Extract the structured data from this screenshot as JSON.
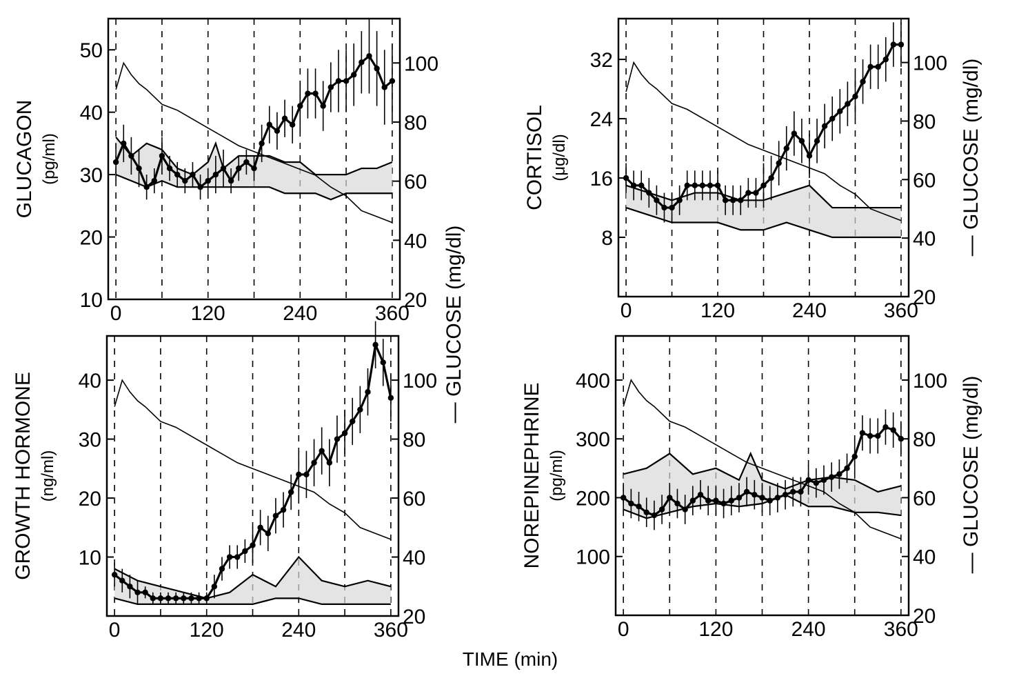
{
  "x_axis_title": "TIME (min)",
  "glucose_axis_label": "— GLUCOSE (mg/dl)",
  "chart_data": [
    {
      "type": "line",
      "panel": "top-left",
      "ylabel": "GLUCAGON",
      "ylabel_unit": "(pg/ml)",
      "ylim": [
        10,
        55
      ],
      "yticks": [
        10,
        20,
        30,
        40,
        50
      ],
      "xlim": [
        -10,
        370
      ],
      "xticks": [
        0,
        120,
        240,
        360
      ],
      "vlines": [
        0,
        60,
        120,
        180,
        240,
        300,
        360
      ],
      "right_axis": {
        "label": "— GLUCOSE (mg/dl)",
        "ylim": [
          20,
          115
        ],
        "yticks": [
          20,
          40,
          60,
          80,
          100
        ]
      },
      "series": [
        {
          "axis": "left",
          "style": "mean-sem",
          "x": [
            0,
            10,
            20,
            30,
            40,
            50,
            60,
            70,
            80,
            90,
            100,
            110,
            120,
            130,
            140,
            150,
            160,
            170,
            180,
            190,
            200,
            210,
            220,
            230,
            240,
            250,
            260,
            270,
            280,
            290,
            300,
            310,
            320,
            330,
            340,
            350,
            360
          ],
          "y": [
            32,
            35,
            33,
            31,
            28,
            29,
            33,
            31,
            30,
            29,
            30,
            28,
            29,
            30,
            31,
            29,
            31,
            32,
            31,
            35,
            38,
            37,
            39,
            38,
            41,
            43,
            43,
            41,
            44,
            45,
            45,
            46,
            48,
            49,
            47,
            44,
            45
          ],
          "err": [
            3,
            3,
            3,
            3,
            2,
            2,
            3,
            2,
            2,
            2,
            2,
            2,
            2,
            3,
            3,
            2,
            2,
            2,
            2,
            3,
            3,
            3,
            3,
            3,
            4,
            4,
            4,
            4,
            4,
            5,
            5,
            5,
            5,
            6,
            6,
            6,
            6
          ]
        },
        {
          "axis": "left",
          "style": "sem-band-upper",
          "x": [
            0,
            20,
            40,
            60,
            80,
            100,
            120,
            130,
            140,
            160,
            180,
            200,
            220,
            240,
            260,
            280,
            300,
            320,
            340,
            360
          ],
          "y": [
            36,
            33,
            35,
            34,
            31,
            30,
            32,
            35,
            31,
            33,
            33,
            33,
            32,
            32,
            30,
            30,
            30,
            31,
            31,
            32
          ]
        },
        {
          "axis": "left",
          "style": "sem-band-lower",
          "x": [
            0,
            20,
            40,
            60,
            80,
            100,
            120,
            140,
            160,
            180,
            200,
            220,
            240,
            260,
            280,
            300,
            320,
            340,
            360
          ],
          "y": [
            30,
            29,
            28,
            29,
            28,
            28,
            28,
            28,
            28,
            28,
            28,
            27,
            27,
            27,
            26,
            27,
            27,
            27,
            27
          ]
        },
        {
          "axis": "right",
          "style": "glucose",
          "x": [
            0,
            10,
            20,
            30,
            40,
            60,
            80,
            100,
            120,
            140,
            160,
            180,
            200,
            220,
            240,
            260,
            280,
            300,
            320,
            340,
            360
          ],
          "y": [
            91,
            100,
            96,
            93,
            91,
            86,
            84,
            81,
            78,
            75,
            72,
            70,
            68,
            66,
            64,
            62,
            58,
            55,
            50,
            48,
            46
          ]
        }
      ]
    },
    {
      "type": "line",
      "panel": "top-right",
      "ylabel": "CORTISOL",
      "ylabel_unit": "(μg/dl)",
      "ylim": [
        0,
        37.5
      ],
      "yticks": [
        8,
        16,
        24,
        32
      ],
      "xlim": [
        -10,
        370
      ],
      "xticks": [
        0,
        120,
        240,
        360
      ],
      "vlines": [
        0,
        60,
        120,
        180,
        240,
        300,
        360
      ],
      "right_axis": {
        "label": "— GLUCOSE (mg/dl)",
        "ylim": [
          20,
          115
        ],
        "yticks": [
          20,
          40,
          60,
          80,
          100
        ]
      },
      "series": [
        {
          "axis": "left",
          "style": "mean-sem",
          "x": [
            0,
            10,
            20,
            30,
            40,
            50,
            60,
            70,
            80,
            90,
            100,
            110,
            120,
            130,
            140,
            150,
            160,
            170,
            180,
            190,
            200,
            210,
            220,
            230,
            240,
            250,
            260,
            270,
            280,
            290,
            300,
            310,
            320,
            330,
            340,
            350,
            360
          ],
          "y": [
            16,
            15,
            15,
            14,
            13,
            12,
            12,
            13,
            15,
            15,
            15,
            15,
            15,
            13,
            13,
            13,
            14,
            14,
            15,
            16,
            18,
            20,
            22,
            21,
            19,
            21,
            23,
            24,
            25,
            26,
            27,
            29,
            31,
            31,
            32,
            34,
            34
          ],
          "err": [
            2,
            2,
            2,
            2,
            2,
            2,
            2,
            2,
            2,
            2,
            2,
            2,
            2,
            2,
            2,
            2,
            2,
            2,
            3,
            3,
            3,
            3,
            3,
            3,
            3,
            3,
            3,
            3,
            3,
            3,
            3,
            3,
            3,
            3,
            3,
            3,
            3
          ]
        },
        {
          "axis": "left",
          "style": "sem-band-upper",
          "x": [
            0,
            30,
            60,
            90,
            120,
            150,
            180,
            210,
            240,
            270,
            300,
            330,
            360
          ],
          "y": [
            15,
            14,
            13,
            14,
            14,
            13,
            13,
            14,
            15,
            12,
            12,
            12,
            12
          ]
        },
        {
          "axis": "left",
          "style": "sem-band-lower",
          "x": [
            0,
            30,
            60,
            90,
            120,
            150,
            180,
            210,
            240,
            270,
            300,
            330,
            360
          ],
          "y": [
            12,
            11,
            10,
            10,
            10,
            9,
            9,
            10,
            9,
            8,
            8,
            8,
            8
          ]
        },
        {
          "axis": "right",
          "style": "glucose",
          "x": [
            0,
            10,
            20,
            30,
            40,
            60,
            80,
            100,
            120,
            140,
            160,
            180,
            200,
            220,
            240,
            260,
            280,
            300,
            320,
            340,
            360
          ],
          "y": [
            90,
            100,
            96,
            93,
            91,
            86,
            84,
            81,
            78,
            75,
            72,
            70,
            68,
            66,
            64,
            62,
            58,
            55,
            50,
            48,
            46
          ]
        }
      ]
    },
    {
      "type": "line",
      "panel": "bottom-left",
      "ylabel": "GROWTH HORMONE",
      "ylabel_unit": "(ng/ml)",
      "ylim": [
        0,
        47.5
      ],
      "yticks": [
        10,
        20,
        30,
        40
      ],
      "xlim": [
        -10,
        370
      ],
      "xticks": [
        0,
        120,
        240,
        360
      ],
      "vlines": [
        0,
        60,
        120,
        180,
        240,
        300,
        360
      ],
      "right_axis": {
        "label": "— GLUCOSE (mg/dl)",
        "ylim": [
          20,
          115
        ],
        "yticks": [
          20,
          40,
          60,
          80,
          100
        ]
      },
      "series": [
        {
          "axis": "left",
          "style": "mean-sem",
          "x": [
            0,
            10,
            20,
            30,
            40,
            50,
            60,
            70,
            80,
            90,
            100,
            110,
            120,
            130,
            140,
            150,
            160,
            170,
            180,
            190,
            200,
            210,
            220,
            230,
            240,
            250,
            260,
            270,
            280,
            290,
            300,
            310,
            320,
            330,
            340,
            350,
            360
          ],
          "y": [
            7,
            6,
            5,
            4,
            4,
            3,
            3,
            3,
            3,
            3,
            3,
            3,
            3,
            5,
            8,
            10,
            10,
            11,
            12,
            15,
            14,
            17,
            18,
            21,
            24,
            24,
            26,
            28,
            26,
            30,
            31,
            33,
            35,
            38,
            46,
            43,
            37
          ],
          "err": [
            2,
            2,
            2,
            2,
            1,
            1,
            1,
            1,
            1,
            1,
            1,
            1,
            1,
            2,
            2,
            2,
            2,
            2,
            3,
            3,
            3,
            3,
            3,
            3,
            4,
            4,
            4,
            4,
            4,
            4,
            4,
            4,
            4,
            4,
            4,
            4,
            4
          ]
        },
        {
          "axis": "left",
          "style": "sem-band-upper",
          "x": [
            0,
            30,
            60,
            90,
            120,
            150,
            180,
            210,
            240,
            270,
            300,
            330,
            360
          ],
          "y": [
            8,
            6,
            5,
            4,
            3,
            4,
            7,
            5,
            10,
            6,
            5,
            6,
            5
          ]
        },
        {
          "axis": "left",
          "style": "sem-band-lower",
          "x": [
            0,
            30,
            60,
            90,
            120,
            150,
            180,
            210,
            240,
            270,
            300,
            330,
            360
          ],
          "y": [
            3,
            2,
            2,
            2,
            2,
            2,
            2,
            3,
            3,
            2,
            2,
            2,
            2
          ]
        },
        {
          "axis": "right",
          "style": "glucose",
          "x": [
            0,
            10,
            20,
            30,
            40,
            60,
            80,
            100,
            120,
            140,
            160,
            180,
            200,
            220,
            240,
            260,
            280,
            300,
            320,
            340,
            360
          ],
          "y": [
            91,
            100,
            96,
            93,
            91,
            86,
            84,
            81,
            78,
            75,
            72,
            70,
            68,
            66,
            64,
            62,
            58,
            55,
            50,
            48,
            46
          ]
        }
      ]
    },
    {
      "type": "line",
      "panel": "bottom-right",
      "ylabel": "NOREPINEPHRINE",
      "ylabel_unit": "(pg/ml)",
      "ylim": [
        0,
        475
      ],
      "yticks": [
        100,
        200,
        300,
        400
      ],
      "xlim": [
        -10,
        370
      ],
      "xticks": [
        0,
        120,
        240,
        360
      ],
      "vlines": [
        0,
        60,
        120,
        180,
        240,
        300,
        360
      ],
      "right_axis": {
        "label": "— GLUCOSE (mg/dl)",
        "ylim": [
          20,
          115
        ],
        "yticks": [
          20,
          40,
          60,
          80,
          100
        ]
      },
      "series": [
        {
          "axis": "left",
          "style": "mean-sem",
          "x": [
            0,
            10,
            20,
            30,
            40,
            50,
            60,
            70,
            80,
            90,
            100,
            110,
            120,
            130,
            140,
            150,
            160,
            170,
            180,
            190,
            200,
            210,
            220,
            230,
            240,
            250,
            260,
            270,
            280,
            290,
            300,
            310,
            320,
            330,
            340,
            350,
            360
          ],
          "y": [
            200,
            190,
            185,
            175,
            170,
            180,
            200,
            190,
            180,
            195,
            205,
            195,
            195,
            190,
            195,
            200,
            210,
            205,
            200,
            195,
            200,
            205,
            210,
            210,
            230,
            225,
            230,
            235,
            240,
            250,
            270,
            310,
            305,
            305,
            320,
            315,
            300
          ],
          "err": [
            25,
            25,
            25,
            25,
            25,
            25,
            25,
            25,
            25,
            25,
            25,
            25,
            25,
            25,
            25,
            25,
            25,
            25,
            25,
            25,
            25,
            25,
            25,
            25,
            25,
            25,
            25,
            25,
            25,
            25,
            30,
            30,
            30,
            30,
            30,
            30,
            30
          ]
        },
        {
          "axis": "left",
          "style": "sem-band-upper",
          "x": [
            0,
            30,
            60,
            90,
            120,
            150,
            165,
            180,
            210,
            240,
            270,
            300,
            330,
            360
          ],
          "y": [
            240,
            250,
            275,
            240,
            250,
            230,
            275,
            230,
            215,
            230,
            235,
            230,
            210,
            220
          ]
        },
        {
          "axis": "left",
          "style": "sem-band-lower",
          "x": [
            0,
            30,
            60,
            90,
            120,
            150,
            180,
            210,
            240,
            270,
            300,
            330,
            360
          ],
          "y": [
            180,
            165,
            175,
            185,
            190,
            185,
            190,
            205,
            185,
            185,
            175,
            175,
            170
          ]
        },
        {
          "axis": "right",
          "style": "glucose",
          "x": [
            0,
            10,
            20,
            30,
            40,
            60,
            80,
            100,
            120,
            140,
            160,
            180,
            200,
            220,
            240,
            260,
            280,
            300,
            320,
            340,
            360
          ],
          "y": [
            91,
            100,
            96,
            93,
            91,
            86,
            84,
            81,
            78,
            75,
            72,
            70,
            68,
            66,
            64,
            62,
            58,
            55,
            50,
            48,
            46
          ]
        }
      ]
    }
  ]
}
